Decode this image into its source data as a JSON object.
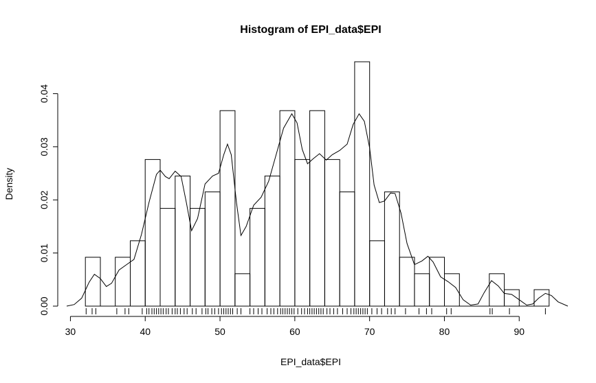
{
  "chart_data": {
    "type": "histogram",
    "title": "Histogram of EPI_data$EPI",
    "xlabel": "EPI_data$EPI",
    "ylabel": "Density",
    "xlim": [
      29.5,
      96.5
    ],
    "ylim": [
      0,
      0.046
    ],
    "x_ticks": [
      30,
      40,
      50,
      60,
      70,
      80,
      90
    ],
    "y_ticks": [
      0.0,
      0.01,
      0.02,
      0.03,
      0.04
    ],
    "x_tick_labels": [
      "30",
      "40",
      "50",
      "60",
      "70",
      "80",
      "90"
    ],
    "y_tick_labels": [
      "0.00",
      "0.01",
      "0.02",
      "0.03",
      "0.04"
    ],
    "bins": [
      {
        "x0": 32,
        "x1": 34,
        "density": 0.0092
      },
      {
        "x0": 34,
        "x1": 36,
        "density": 0.0
      },
      {
        "x0": 36,
        "x1": 38,
        "density": 0.0092
      },
      {
        "x0": 38,
        "x1": 40,
        "density": 0.0123
      },
      {
        "x0": 40,
        "x1": 42,
        "density": 0.0276
      },
      {
        "x0": 42,
        "x1": 44,
        "density": 0.0184
      },
      {
        "x0": 44,
        "x1": 46,
        "density": 0.0245
      },
      {
        "x0": 46,
        "x1": 48,
        "density": 0.0184
      },
      {
        "x0": 48,
        "x1": 50,
        "density": 0.0215
      },
      {
        "x0": 50,
        "x1": 52,
        "density": 0.0368
      },
      {
        "x0": 52,
        "x1": 54,
        "density": 0.0061
      },
      {
        "x0": 54,
        "x1": 56,
        "density": 0.0184
      },
      {
        "x0": 56,
        "x1": 58,
        "density": 0.0245
      },
      {
        "x0": 58,
        "x1": 60,
        "density": 0.0368
      },
      {
        "x0": 60,
        "x1": 62,
        "density": 0.0276
      },
      {
        "x0": 62,
        "x1": 64,
        "density": 0.0368
      },
      {
        "x0": 64,
        "x1": 66,
        "density": 0.0276
      },
      {
        "x0": 66,
        "x1": 68,
        "density": 0.0215
      },
      {
        "x0": 68,
        "x1": 70,
        "density": 0.046
      },
      {
        "x0": 70,
        "x1": 72,
        "density": 0.0123
      },
      {
        "x0": 72,
        "x1": 74,
        "density": 0.0215
      },
      {
        "x0": 74,
        "x1": 76,
        "density": 0.0092
      },
      {
        "x0": 76,
        "x1": 78,
        "density": 0.0061
      },
      {
        "x0": 78,
        "x1": 80,
        "density": 0.0092
      },
      {
        "x0": 80,
        "x1": 82,
        "density": 0.0061
      },
      {
        "x0": 82,
        "x1": 84,
        "density": 0.0
      },
      {
        "x0": 84,
        "x1": 86,
        "density": 0.0
      },
      {
        "x0": 86,
        "x1": 88,
        "density": 0.0061
      },
      {
        "x0": 88,
        "x1": 90,
        "density": 0.0031
      },
      {
        "x0": 90,
        "x1": 92,
        "density": 0.0
      },
      {
        "x0": 92,
        "x1": 94,
        "density": 0.0031
      }
    ],
    "density_curve": [
      [
        29.5,
        0.0
      ],
      [
        30.5,
        0.0003
      ],
      [
        31.5,
        0.0015
      ],
      [
        32.5,
        0.0045
      ],
      [
        33.2,
        0.006
      ],
      [
        34.0,
        0.0052
      ],
      [
        34.8,
        0.0037
      ],
      [
        35.5,
        0.0043
      ],
      [
        36.5,
        0.0068
      ],
      [
        37.5,
        0.0078
      ],
      [
        38.5,
        0.0088
      ],
      [
        39.5,
        0.0135
      ],
      [
        40.5,
        0.0195
      ],
      [
        41.5,
        0.0248
      ],
      [
        42.0,
        0.0256
      ],
      [
        42.7,
        0.0244
      ],
      [
        43.2,
        0.024
      ],
      [
        44.0,
        0.0254
      ],
      [
        44.8,
        0.0244
      ],
      [
        45.5,
        0.0195
      ],
      [
        46.2,
        0.0142
      ],
      [
        47.0,
        0.0165
      ],
      [
        48.0,
        0.023
      ],
      [
        49.0,
        0.0245
      ],
      [
        49.8,
        0.025
      ],
      [
        50.5,
        0.0285
      ],
      [
        51.0,
        0.0305
      ],
      [
        51.5,
        0.0285
      ],
      [
        52.2,
        0.0195
      ],
      [
        52.8,
        0.0133
      ],
      [
        53.5,
        0.015
      ],
      [
        54.5,
        0.019
      ],
      [
        55.5,
        0.0205
      ],
      [
        56.5,
        0.0235
      ],
      [
        57.5,
        0.0285
      ],
      [
        58.5,
        0.0335
      ],
      [
        59.6,
        0.0362
      ],
      [
        60.3,
        0.0345
      ],
      [
        61.0,
        0.0295
      ],
      [
        61.7,
        0.0268
      ],
      [
        62.5,
        0.0278
      ],
      [
        63.3,
        0.0287
      ],
      [
        64.2,
        0.0275
      ],
      [
        65.0,
        0.0285
      ],
      [
        66.0,
        0.0293
      ],
      [
        67.0,
        0.0305
      ],
      [
        67.8,
        0.0342
      ],
      [
        68.6,
        0.0362
      ],
      [
        69.3,
        0.0348
      ],
      [
        70.0,
        0.0298
      ],
      [
        70.6,
        0.0228
      ],
      [
        71.3,
        0.0195
      ],
      [
        72.0,
        0.0198
      ],
      [
        72.8,
        0.0213
      ],
      [
        73.4,
        0.0212
      ],
      [
        74.2,
        0.0175
      ],
      [
        75.0,
        0.0118
      ],
      [
        76.0,
        0.0078
      ],
      [
        77.0,
        0.0085
      ],
      [
        77.8,
        0.0094
      ],
      [
        78.5,
        0.0083
      ],
      [
        79.5,
        0.0055
      ],
      [
        80.5,
        0.0046
      ],
      [
        81.5,
        0.0035
      ],
      [
        82.5,
        0.0012
      ],
      [
        83.5,
        0.0002
      ],
      [
        84.5,
        0.0004
      ],
      [
        85.3,
        0.0025
      ],
      [
        86.3,
        0.0048
      ],
      [
        87.2,
        0.0038
      ],
      [
        88.0,
        0.0024
      ],
      [
        89.0,
        0.0022
      ],
      [
        90.0,
        0.0012
      ],
      [
        91.0,
        0.0002
      ],
      [
        91.8,
        0.0004
      ],
      [
        92.6,
        0.0015
      ],
      [
        93.5,
        0.0024
      ],
      [
        94.3,
        0.002
      ],
      [
        95.2,
        0.0008
      ],
      [
        96.5,
        0.0
      ]
    ],
    "rug_values": [
      32.1,
      32.9,
      33.4,
      36.2,
      37.3,
      37.8,
      39.6,
      40.2,
      40.5,
      40.9,
      41.2,
      41.5,
      41.8,
      42.1,
      42.4,
      42.8,
      43.1,
      43.6,
      44.0,
      44.3,
      44.7,
      45.2,
      45.6,
      46.3,
      46.8,
      47.6,
      48.1,
      48.4,
      48.9,
      49.3,
      49.8,
      50.2,
      50.5,
      50.8,
      51.1,
      51.4,
      51.7,
      52.3,
      52.8,
      54.0,
      54.5,
      55.1,
      55.6,
      56.3,
      56.8,
      57.2,
      57.7,
      58.1,
      58.4,
      58.7,
      59.0,
      59.3,
      59.6,
      59.9,
      60.4,
      60.9,
      61.3,
      61.7,
      62.0,
      62.3,
      62.6,
      62.9,
      63.2,
      63.5,
      63.8,
      64.3,
      64.7,
      65.2,
      65.7,
      66.4,
      67.0,
      67.5,
      67.9,
      68.2,
      68.5,
      68.8,
      69.1,
      69.4,
      69.7,
      70.3,
      71.0,
      71.6,
      72.4,
      72.9,
      73.4,
      74.8,
      76.6,
      77.6,
      78.3,
      80.3,
      80.9,
      86.1,
      86.4,
      88.7,
      93.5
    ]
  }
}
